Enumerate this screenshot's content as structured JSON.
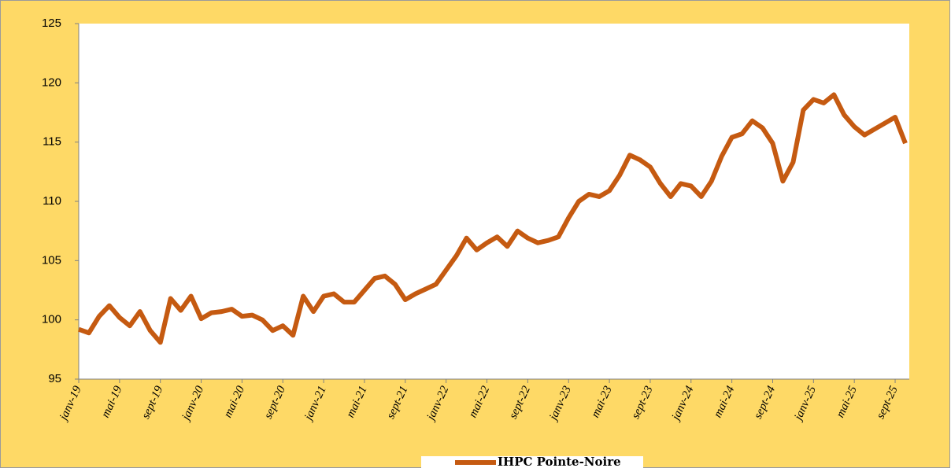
{
  "chart_data": {
    "type": "line",
    "categories": [
      "janv-19",
      null,
      null,
      null,
      "mai-19",
      null,
      null,
      null,
      "sept-19",
      null,
      null,
      null,
      "janv-20",
      null,
      null,
      null,
      "mai-20",
      null,
      null,
      null,
      "sept-20",
      null,
      null,
      null,
      "janv-21",
      null,
      null,
      null,
      "mai-21",
      null,
      null,
      null,
      "sept-21",
      null,
      null,
      null,
      "janv-22",
      null,
      null,
      null,
      "mai-22",
      null,
      null,
      null,
      "sept-22",
      null,
      null,
      null,
      "janv-23",
      null,
      null,
      null,
      "mai-23",
      null,
      null,
      null,
      "sept-23",
      null,
      null,
      null,
      "janv-24",
      null,
      null,
      null,
      "mai-24",
      null,
      null,
      null,
      "sept-24",
      null,
      null,
      null,
      "janv-25",
      null,
      null,
      null,
      "mai-25",
      null,
      null,
      null,
      "sept-25",
      null
    ],
    "series": [
      {
        "name": "IHPC Pointe-Noire",
        "color": "#c55a11",
        "values": [
          99.2,
          98.9,
          100.3,
          101.2,
          100.2,
          99.5,
          100.7,
          99.1,
          98.1,
          101.8,
          100.8,
          102.0,
          100.1,
          100.6,
          100.7,
          100.9,
          100.3,
          100.4,
          100.0,
          99.1,
          99.5,
          98.7,
          102.0,
          100.7,
          102.0,
          102.2,
          101.5,
          101.5,
          102.5,
          103.5,
          103.7,
          103.0,
          101.7,
          102.2,
          102.6,
          103.0,
          104.2,
          105.4,
          106.9,
          105.9,
          106.5,
          107.0,
          106.2,
          107.5,
          106.9,
          106.5,
          106.7,
          107.0,
          108.6,
          110.0,
          110.6,
          110.4,
          110.9,
          112.2,
          113.9,
          113.5,
          112.9,
          111.5,
          110.4,
          111.5,
          111.3,
          110.4,
          111.7,
          113.8,
          115.4,
          115.7,
          116.8,
          116.2,
          114.9,
          111.7,
          113.3,
          117.7,
          118.6,
          118.3,
          119.0,
          117.3,
          116.3,
          115.6,
          116.1,
          116.6,
          117.1,
          114.9
        ]
      }
    ],
    "ylim": [
      95,
      125
    ],
    "yticks": [
      95,
      100,
      105,
      110,
      115,
      120,
      125
    ],
    "legend": "bottom"
  }
}
